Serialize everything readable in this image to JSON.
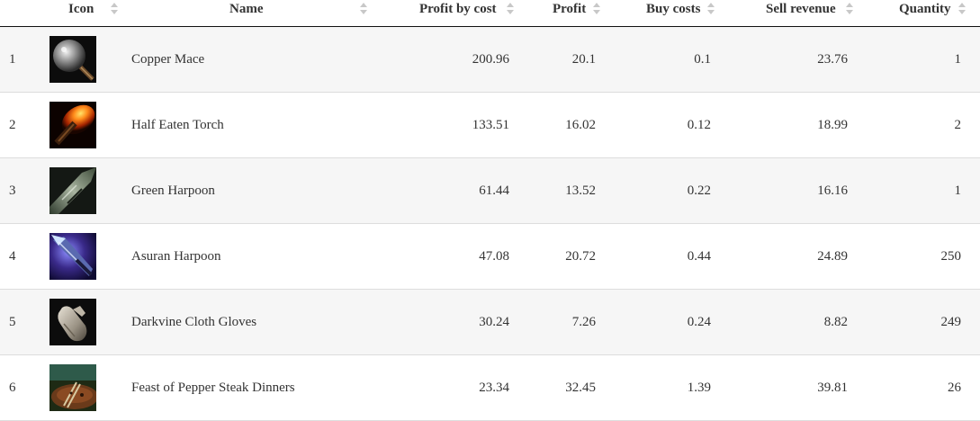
{
  "headers": {
    "icon": "Icon",
    "name": "Name",
    "profit_by_cost": "Profit by cost",
    "profit": "Profit",
    "buy_costs": "Buy costs",
    "sell_revenue": "Sell revenue",
    "quantity": "Quantity"
  },
  "rows": [
    {
      "index": "1",
      "icon": "copper-mace-icon",
      "name": "Copper Mace",
      "profit_by_cost": "200.96",
      "profit": "20.1",
      "buy_costs": "0.1",
      "sell_revenue": "23.76",
      "quantity": "1"
    },
    {
      "index": "2",
      "icon": "half-eaten-torch-icon",
      "name": "Half Eaten Torch",
      "profit_by_cost": "133.51",
      "profit": "16.02",
      "buy_costs": "0.12",
      "sell_revenue": "18.99",
      "quantity": "2"
    },
    {
      "index": "3",
      "icon": "green-harpoon-icon",
      "name": "Green Harpoon",
      "profit_by_cost": "61.44",
      "profit": "13.52",
      "buy_costs": "0.22",
      "sell_revenue": "16.16",
      "quantity": "1"
    },
    {
      "index": "4",
      "icon": "asuran-harpoon-icon",
      "name": "Asuran Harpoon",
      "profit_by_cost": "47.08",
      "profit": "20.72",
      "buy_costs": "0.44",
      "sell_revenue": "24.89",
      "quantity": "250"
    },
    {
      "index": "5",
      "icon": "darkvine-cloth-gloves-icon",
      "name": "Darkvine Cloth Gloves",
      "profit_by_cost": "30.24",
      "profit": "7.26",
      "buy_costs": "0.24",
      "sell_revenue": "8.82",
      "quantity": "249"
    },
    {
      "index": "6",
      "icon": "feast-pepper-steak-icon",
      "name": "Feast of Pepper Steak Dinners",
      "profit_by_cost": "23.34",
      "profit": "32.45",
      "buy_costs": "1.39",
      "sell_revenue": "39.81",
      "quantity": "26"
    }
  ],
  "colors": {
    "odd_row": "#f6f6f6",
    "even_row": "#ffffff",
    "header_border": "#111111",
    "row_border": "#dddddd",
    "sort_arrow": "#c8c8c8"
  }
}
